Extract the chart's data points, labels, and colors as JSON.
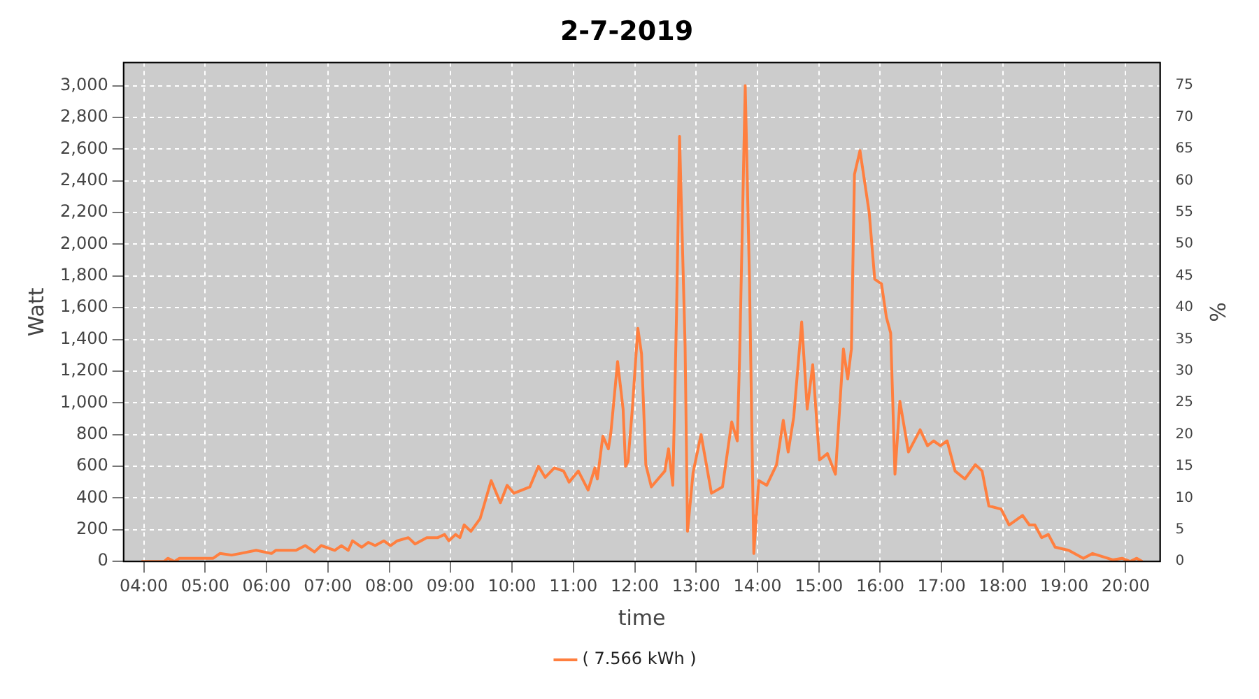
{
  "chart_data": {
    "type": "line",
    "title": "2-7-2019",
    "xlabel": "time",
    "ylabel": "Watt",
    "y2label": "%",
    "xlim": [
      3.67,
      20.56
    ],
    "xticks": [
      {
        "value": 4,
        "label": "04:00"
      },
      {
        "value": 5,
        "label": "05:00"
      },
      {
        "value": 6,
        "label": "06:00"
      },
      {
        "value": 7,
        "label": "07:00"
      },
      {
        "value": 8,
        "label": "08:00"
      },
      {
        "value": 9,
        "label": "09:00"
      },
      {
        "value": 10,
        "label": "10:00"
      },
      {
        "value": 11,
        "label": "11:00"
      },
      {
        "value": 12,
        "label": "12:00"
      },
      {
        "value": 13,
        "label": "13:00"
      },
      {
        "value": 14,
        "label": "14:00"
      },
      {
        "value": 15,
        "label": "15:00"
      },
      {
        "value": 16,
        "label": "16:00"
      },
      {
        "value": 17,
        "label": "17:00"
      },
      {
        "value": 18,
        "label": "18:00"
      },
      {
        "value": 19,
        "label": "19:00"
      },
      {
        "value": 20,
        "label": "20:00"
      }
    ],
    "ylim": [
      0,
      3145
    ],
    "yticks": [
      0,
      200,
      400,
      600,
      800,
      {
        "value": 1000,
        "label": "1,000"
      },
      {
        "value": 1200,
        "label": "1,200"
      },
      {
        "value": 1400,
        "label": "1,400"
      },
      {
        "value": 1600,
        "label": "1,600"
      },
      {
        "value": 1800,
        "label": "1,800"
      },
      {
        "value": 2000,
        "label": "2,000"
      },
      {
        "value": 2200,
        "label": "2,200"
      },
      {
        "value": 2400,
        "label": "2,400"
      },
      {
        "value": 2600,
        "label": "2,600"
      },
      {
        "value": 2800,
        "label": "2,800"
      },
      {
        "value": 3000,
        "label": "3,000"
      }
    ],
    "y2lim": [
      0,
      78.6
    ],
    "y2ticks": [
      0,
      5,
      10,
      15,
      20,
      25,
      30,
      35,
      40,
      45,
      50,
      55,
      60,
      65,
      70,
      75
    ],
    "grid": true,
    "legend": "bottom",
    "marker": "none",
    "line_style": "solid",
    "series": [
      {
        "name": "( 7.566 kWh )",
        "color": "#ff7f3f",
        "x": [
          3.96,
          4.33,
          4.39,
          4.5,
          4.58,
          4.88,
          5.13,
          5.24,
          5.43,
          5.57,
          5.83,
          6.08,
          6.15,
          6.48,
          6.63,
          6.78,
          6.89,
          7.11,
          7.22,
          7.33,
          7.4,
          7.55,
          7.66,
          7.77,
          7.91,
          8.02,
          8.13,
          8.31,
          8.42,
          8.61,
          8.79,
          8.9,
          8.97,
          9.08,
          9.15,
          9.22,
          9.33,
          9.48,
          9.66,
          9.81,
          9.92,
          10.03,
          10.29,
          10.43,
          10.54,
          10.69,
          10.84,
          10.93,
          11.08,
          11.24,
          11.35,
          11.39,
          11.48,
          11.57,
          11.61,
          11.72,
          11.81,
          11.85,
          11.89,
          11.96,
          12.05,
          12.11,
          12.18,
          12.27,
          12.49,
          12.55,
          12.62,
          12.68,
          12.73,
          12.82,
          12.86,
          12.95,
          13.08,
          13.25,
          13.43,
          13.58,
          13.67,
          13.71,
          13.8,
          13.87,
          13.93,
          13.94,
          14.02,
          14.15,
          14.31,
          14.42,
          14.5,
          14.59,
          14.72,
          14.81,
          14.9,
          15.01,
          15.14,
          15.27,
          15.4,
          15.47,
          15.53,
          15.58,
          15.67,
          15.82,
          15.91,
          16.02,
          16.1,
          16.17,
          16.24,
          16.32,
          16.46,
          16.65,
          16.77,
          16.87,
          16.98,
          17.09,
          17.22,
          17.38,
          17.55,
          17.66,
          17.77,
          17.97,
          18.1,
          18.32,
          18.43,
          18.52,
          18.63,
          18.74,
          18.85,
          19.07,
          19.31,
          19.46,
          19.79,
          19.94,
          20.07,
          20.18,
          20.27
        ],
        "values": [
          0,
          0,
          20,
          0,
          20,
          20,
          20,
          50,
          40,
          50,
          70,
          50,
          70,
          70,
          100,
          60,
          100,
          70,
          100,
          70,
          130,
          90,
          120,
          100,
          130,
          100,
          130,
          150,
          110,
          150,
          150,
          170,
          130,
          170,
          150,
          230,
          190,
          270,
          510,
          370,
          480,
          430,
          470,
          600,
          530,
          590,
          570,
          500,
          570,
          450,
          590,
          520,
          790,
          710,
          810,
          1260,
          960,
          600,
          630,
          960,
          1470,
          1310,
          610,
          470,
          570,
          710,
          480,
          1550,
          2680,
          1360,
          190,
          560,
          800,
          430,
          470,
          880,
          760,
          1310,
          3000,
          1760,
          290,
          50,
          510,
          480,
          610,
          890,
          690,
          910,
          1510,
          960,
          1240,
          640,
          680,
          550,
          1340,
          1150,
          1340,
          2440,
          2590,
          2200,
          1780,
          1750,
          1540,
          1440,
          550,
          1010,
          690,
          830,
          730,
          760,
          730,
          760,
          570,
          520,
          610,
          570,
          350,
          330,
          230,
          290,
          230,
          230,
          150,
          170,
          90,
          70,
          20,
          50,
          10,
          20,
          0,
          20,
          0
        ]
      }
    ]
  }
}
